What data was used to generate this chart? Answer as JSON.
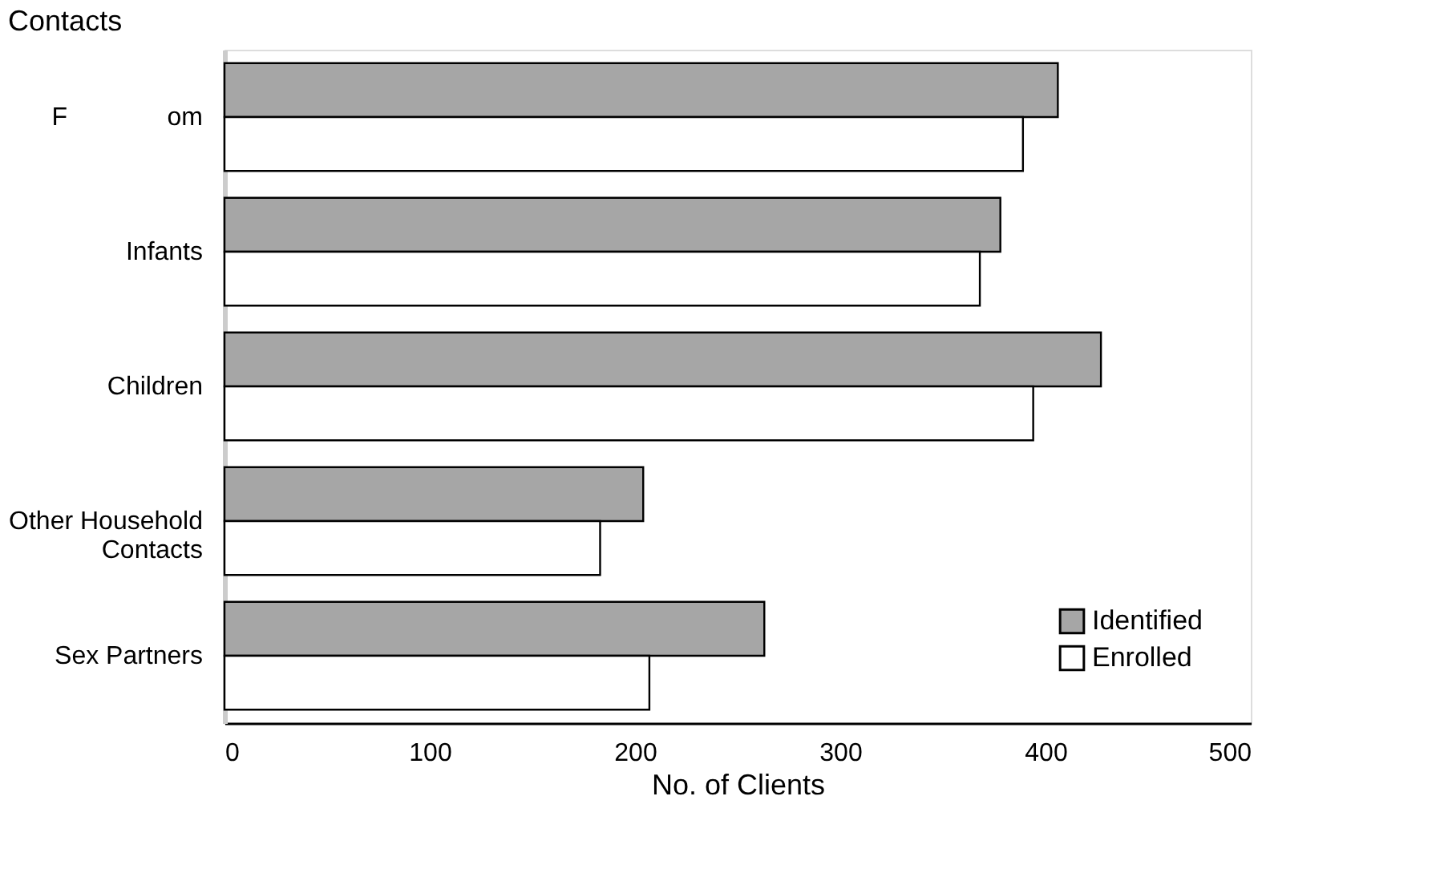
{
  "chart_data": {
    "type": "bar",
    "orientation": "horizontal",
    "title": "Contacts",
    "xlabel": "No. of Clients",
    "categories": [
      "F              om",
      "Infants",
      "Children",
      "Other Household Contacts",
      "Sex Partners"
    ],
    "series": [
      {
        "name": "Identified",
        "color": "#a6a6a6",
        "values": [
          406,
          378,
          427,
          204,
          263
        ]
      },
      {
        "name": "Enrolled",
        "color": "#ffffff",
        "values": [
          389,
          368,
          394,
          183,
          207
        ]
      }
    ],
    "xlim": [
      0,
      500
    ],
    "xticks": [
      0,
      100,
      200,
      300,
      400,
      500
    ],
    "grid": false,
    "legend": "bottom right"
  }
}
